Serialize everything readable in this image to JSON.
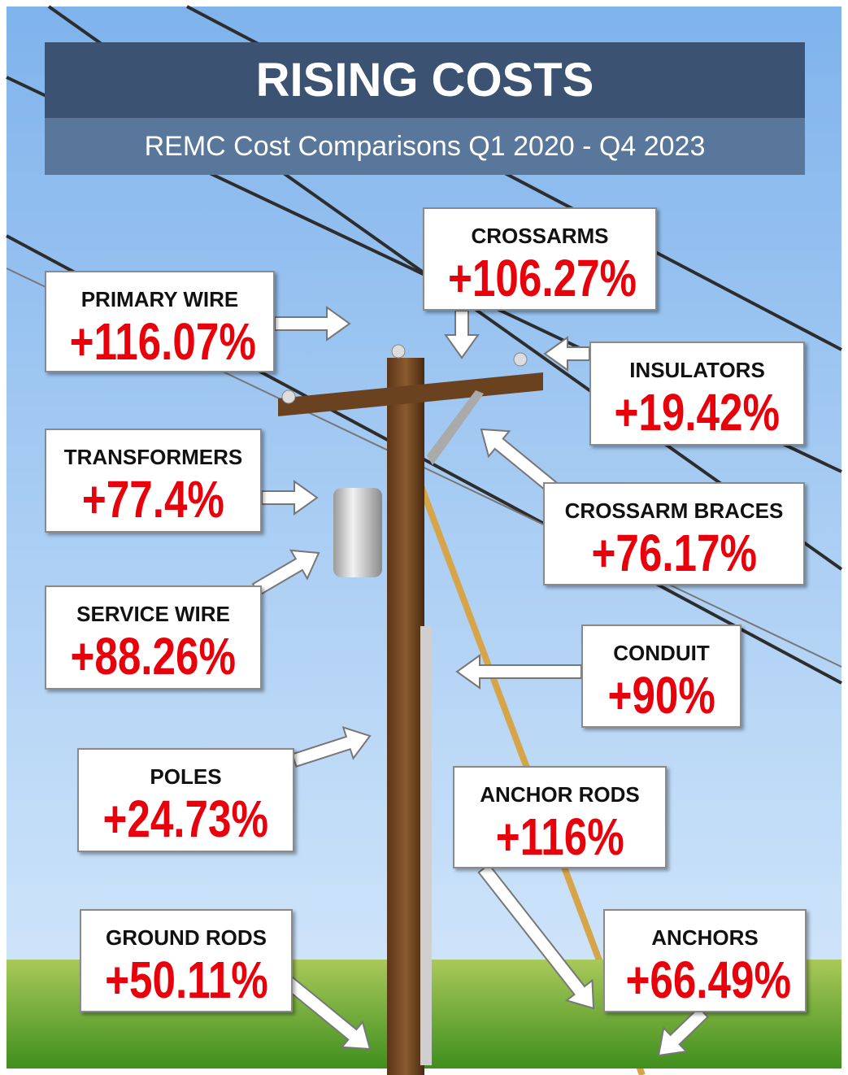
{
  "header": {
    "title": "RISING COSTS",
    "subtitle": "REMC Cost Comparisons Q1 2020 - Q4 2023"
  },
  "items": [
    {
      "label": "PRIMARY WIRE",
      "value": "+116.07%"
    },
    {
      "label": "CROSSARMS",
      "value": "+106.27%"
    },
    {
      "label": "INSULATORS",
      "value": "+19.42%"
    },
    {
      "label": "TRANSFORMERS",
      "value": "+77.4%"
    },
    {
      "label": "CROSSARM BRACES",
      "value": "+76.17%"
    },
    {
      "label": "SERVICE WIRE",
      "value": "+88.26%"
    },
    {
      "label": "CONDUIT",
      "value": "+90%"
    },
    {
      "label": "POLES",
      "value": "+24.73%"
    },
    {
      "label": "ANCHOR RODS",
      "value": "+116%"
    },
    {
      "label": "GROUND RODS",
      "value": "+50.11%"
    },
    {
      "label": "ANCHORS",
      "value": "+66.49%"
    }
  ]
}
